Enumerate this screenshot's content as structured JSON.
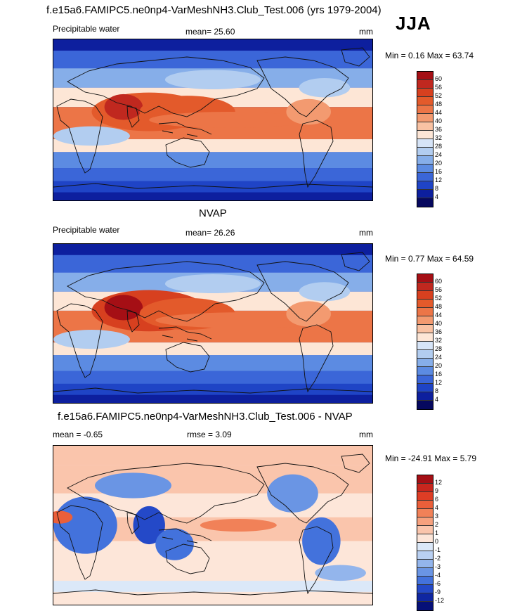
{
  "header": {
    "title": "f.e15a6.FAMIPC5.ne0np4-VarMeshNH3.Club_Test.006 (yrs 1979-2004)",
    "season": "JJA"
  },
  "panel1": {
    "left": "Precipitable water",
    "center": "mean=  25.60",
    "right": "mm",
    "minmax": "Min =   0.16 Max =  63.74"
  },
  "panel2": {
    "title": "NVAP",
    "left": "Precipitable water",
    "center": "mean=  26.26",
    "right": "mm",
    "minmax": "Min =   0.77 Max =  64.59"
  },
  "panel3": {
    "title": "f.e15a6.FAMIPC5.ne0np4-VarMeshNH3.Club_Test.006 - NVAP",
    "left": "mean =  -0.65",
    "center": "rmse =   3.09",
    "right": "mm",
    "minmax": "Min = -24.91 Max =   5.79"
  },
  "chart_data": [
    {
      "type": "heatmap",
      "title": "Precipitable water",
      "units": "mm",
      "mean": 25.6,
      "min": 0.16,
      "max": 63.74,
      "levels": [
        "60",
        "56",
        "52",
        "48",
        "44",
        "40",
        "36",
        "32",
        "28",
        "24",
        "20",
        "16",
        "12",
        "8",
        "4"
      ],
      "colors": [
        "#a50f15",
        "#c0281f",
        "#d7401f",
        "#e35a2b",
        "#ec7547",
        "#f39a70",
        "#f9c2a3",
        "#fde6d6",
        "#d6e4f7",
        "#b2cdf0",
        "#86aee9",
        "#5c8be2",
        "#3b66d8",
        "#1f44c6",
        "#0d1f9e",
        "#06085e"
      ]
    },
    {
      "type": "heatmap",
      "title": "NVAP",
      "units": "mm",
      "mean": 26.26,
      "min": 0.77,
      "max": 64.59,
      "levels": [
        "60",
        "56",
        "52",
        "48",
        "44",
        "40",
        "36",
        "32",
        "28",
        "24",
        "20",
        "16",
        "12",
        "8",
        "4"
      ],
      "colors": [
        "#a50f15",
        "#c0281f",
        "#d7401f",
        "#e35a2b",
        "#ec7547",
        "#f39a70",
        "#f9c2a3",
        "#fde6d6",
        "#d6e4f7",
        "#b2cdf0",
        "#86aee9",
        "#5c8be2",
        "#3b66d8",
        "#1f44c6",
        "#0d1f9e",
        "#06085e"
      ]
    },
    {
      "type": "heatmap",
      "title": "f.e15a6.FAMIPC5.ne0np4-VarMeshNH3.Club_Test.006 - NVAP",
      "units": "mm",
      "mean": -0.65,
      "rmse": 3.09,
      "min": -24.91,
      "max": 5.79,
      "levels": [
        "12",
        "9",
        "6",
        "4",
        "3",
        "2",
        "1",
        "0",
        "-1",
        "-2",
        "-3",
        "-4",
        "-6",
        "-9",
        "-12"
      ],
      "colors": [
        "#a50f15",
        "#c8261e",
        "#de3d25",
        "#ea5f3a",
        "#f18158",
        "#f6a17e",
        "#fac5ac",
        "#fde6d9",
        "#dbe8f8",
        "#b9d0f2",
        "#93b5ec",
        "#6a95e4",
        "#4372dc",
        "#2449c8",
        "#0f26a2",
        "#061078"
      ]
    }
  ]
}
